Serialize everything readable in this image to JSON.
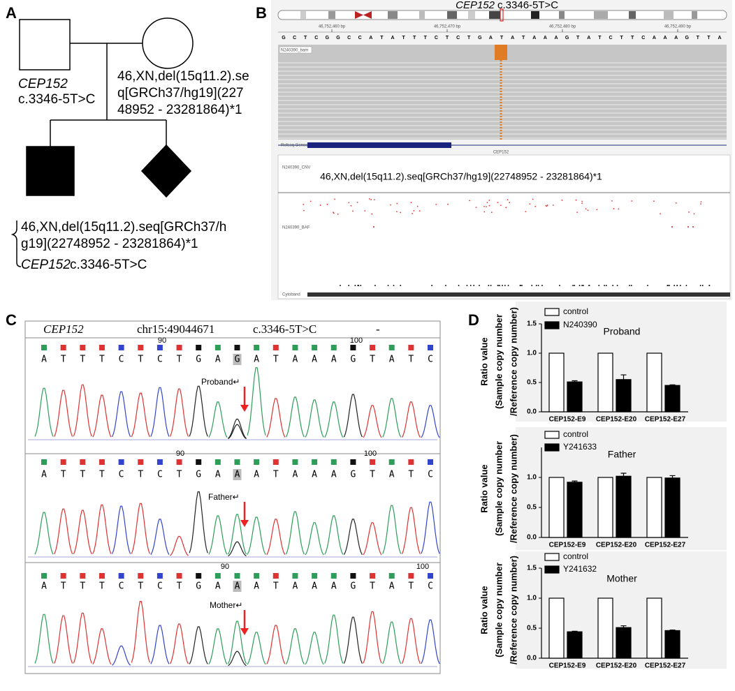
{
  "panels": {
    "a": "A",
    "b": "B",
    "c": "C",
    "d": "D"
  },
  "pedigree": {
    "father_gene": "CEP152",
    "father_variant": "c.3346-5T>C",
    "mother_karyotype": [
      "46,XN,del(15q11.2).se",
      "q[GRCh37/hg19](227",
      "48952 - 23281864)*1"
    ],
    "proband_karyotype": [
      "46,XN,del(15q11.2).seq[GRCh37/h",
      "g19](22748952 - 23281864)*1"
    ],
    "proband_gene": "CEP152",
    "proband_variant": "c.3346-5T>C"
  },
  "igv": {
    "title_gene": "CEP152",
    "title_variant": "c.3346-5T>C",
    "positions": [
      "46,752,460 bp",
      "46,752,470 bp",
      "46,752,480 bp",
      "46,752,490 bp"
    ],
    "reference": "GCTCGGCCATATTTCTCTGATATAAAGTATCTTCAAAGTTA",
    "bam_track": "N240390_bam",
    "genes_track": "Refseq Genes",
    "gene": "CEP152",
    "cnv_track": "N240390_CNV",
    "cnv_label": "46,XN,del(15q11.2).seq[GRCh37/hg19](22748952 - 23281864)*1",
    "baf_track": "N240390_BAF",
    "cytoband_track": "Cytoband"
  },
  "sanger": {
    "gene": "CEP152",
    "locus": "chr15:49044671",
    "variant": "c.3346-5T>C",
    "strand": "-",
    "samples": [
      {
        "name": "Proband↵",
        "sequence": "ATTTCTCTGAGATAAAGTATC",
        "ruler": [
          90,
          100
        ]
      },
      {
        "name": "Father↵",
        "sequence": "ATTTCTCTGAAATAAAGTATC",
        "ruler": [
          90,
          100
        ]
      },
      {
        "name": "Mother↵",
        "sequence": "ATTTCTCTGAAATAAAGTATC",
        "ruler": [
          90,
          100
        ]
      }
    ]
  },
  "chart_data": [
    {
      "type": "bar",
      "title": "Proband",
      "ylabel": [
        "Ratio value",
        "(Sample copy number",
        "/Reference copy number)"
      ],
      "categories": [
        "CEP152-E9",
        "CEP152-E20",
        "CEP152-E27"
      ],
      "series": [
        {
          "name": "control",
          "color": "#ffffff",
          "values": [
            1,
            1,
            1
          ]
        },
        {
          "name": "N240390",
          "color": "#000000",
          "values": [
            0.51,
            0.55,
            0.45
          ],
          "errors": [
            0.02,
            0.08,
            0.01
          ]
        }
      ],
      "ylim": [
        0,
        1.5
      ],
      "yticks": [
        {
          "value": 0,
          "label": "0.0"
        },
        0.5,
        {
          "value": 1,
          "label": "1.0"
        },
        1.5
      ]
    },
    {
      "type": "bar",
      "title": "Father",
      "ylabel": [
        "Ratio value",
        "(Sample copy number",
        "/Reference copy number)"
      ],
      "categories": [
        "CEP152-E9",
        "CEP152-E20",
        "CEP152-E27"
      ],
      "series": [
        {
          "name": "control",
          "color": "#ffffff",
          "values": [
            1,
            1,
            1
          ]
        },
        {
          "name": "Y241633",
          "color": "#000000",
          "values": [
            0.92,
            1.02,
            0.99
          ],
          "errors": [
            0.02,
            0.05,
            0.04
          ]
        }
      ],
      "ylim": [
        0,
        1.5
      ],
      "yticks": [
        {
          "value": 0,
          "label": "0.0"
        },
        0.5,
        {
          "value": 1,
          "label": "1.0"
        }
      ]
    },
    {
      "type": "bar",
      "title": "Mother",
      "ylabel": [
        "Ratio value",
        "(Sample copy number",
        "/Reference copy number)"
      ],
      "categories": [
        "CEP152-E9",
        "CEP152-E20",
        "CEP152-E27"
      ],
      "series": [
        {
          "name": "control",
          "color": "#ffffff",
          "values": [
            1,
            1,
            1
          ]
        },
        {
          "name": "Y241632",
          "color": "#000000",
          "values": [
            0.44,
            0.51,
            0.46
          ],
          "errors": [
            0.01,
            0.03,
            0.01
          ]
        }
      ],
      "ylim": [
        0,
        1.5
      ],
      "yticks": [
        {
          "value": 0,
          "label": "0.0"
        },
        0.5,
        {
          "value": 1,
          "label": "1.0"
        },
        1.5
      ]
    }
  ]
}
